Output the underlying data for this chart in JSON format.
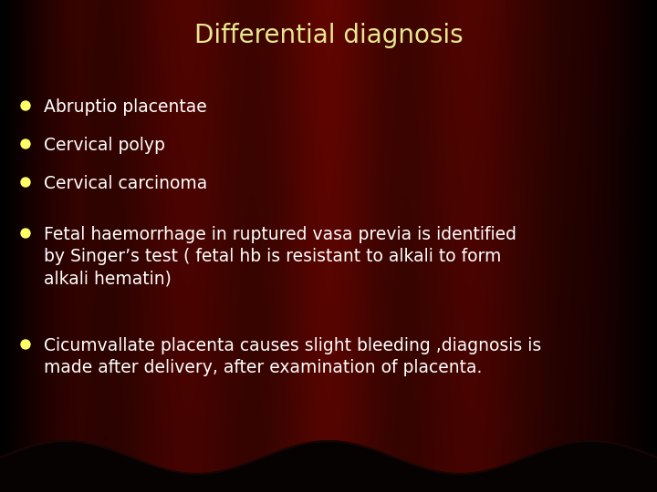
{
  "title": "Differential diagnosis",
  "title_color": "#E8E890",
  "title_fontsize": 20,
  "title_fontweight": "normal",
  "bullet_color": "#FFFF66",
  "text_color": "#FFFFFF",
  "text_fontsize": 13.5,
  "bullet_items": [
    "Abruptio placentae",
    "Cervical polyp",
    "Cervical carcinoma",
    "Fetal haemorrhage in ruptured vasa previa is identified\nby Singer’s test ( fetal hb is resistant to alkali to form\nalkali hematin)",
    "Cicumvallate placenta causes slight bleeding ,diagnosis is\nmade after delivery, after examination of placenta."
  ],
  "bg_base_r": 0.38,
  "bg_stripe_count": 7,
  "wave_amplitude": 18,
  "wave_frequency": 5
}
